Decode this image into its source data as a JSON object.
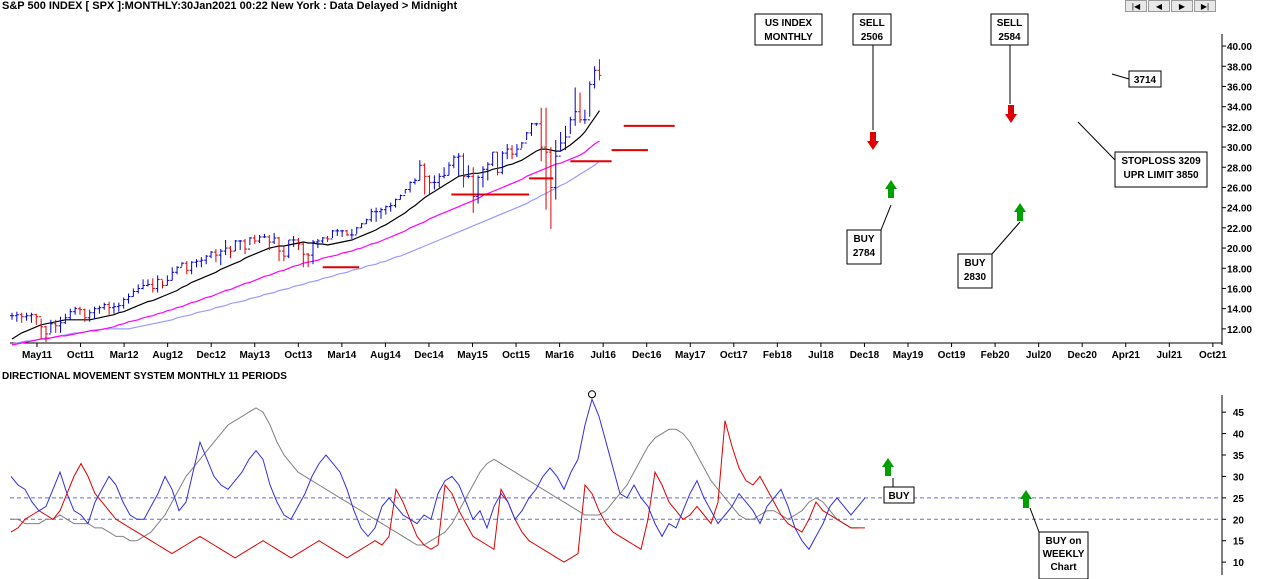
{
  "header": {
    "title": "S&P 500 INDEX [ SPX ]:MONTHLY:30Jan2021 00:22 New York : Data Delayed > Midnight",
    "nav_buttons": [
      "|◀",
      "◀",
      "▶",
      "▶|"
    ]
  },
  "subpanel_title": "DIRECTIONAL MOVEMENT SYSTEM MONTHLY 11 PERIODS",
  "chart_data": [
    {
      "type": "line",
      "name": "price",
      "x_ticks": [
        "May11",
        "Oct11",
        "Mar12",
        "Aug12",
        "Dec12",
        "May13",
        "Oct13",
        "Mar14",
        "Aug14",
        "Dec14",
        "May15",
        "Oct15",
        "Mar16",
        "Jul16",
        "Dec16",
        "May17",
        "Oct17",
        "Feb18",
        "Jul18",
        "Dec18",
        "May19",
        "Oct19",
        "Feb20",
        "Jul20",
        "Dec20",
        "Apr21",
        "Jul21",
        "Oct21"
      ],
      "y_ticks": [
        12.0,
        14.0,
        16.0,
        18.0,
        20.0,
        22.0,
        24.0,
        26.0,
        28.0,
        30.0,
        32.0,
        34.0,
        36.0,
        38.0,
        40.0
      ],
      "ylim": [
        10.6,
        40.6
      ],
      "close": [
        13.3,
        13.4,
        13.2,
        13.3,
        13.4,
        13.2,
        12.2,
        11.5,
        12.5,
        12.3,
        12.6,
        13.1,
        13.7,
        14.0,
        13.9,
        13.1,
        13.6,
        14.0,
        14.1,
        14.4,
        14.1,
        14.2,
        14.3,
        14.9,
        15.2,
        15.7,
        16.0,
        16.3,
        16.4,
        16.0,
        16.9,
        16.3,
        16.8,
        17.6,
        18.1,
        18.5,
        17.8,
        18.6,
        18.7,
        18.8,
        19.2,
        19.6,
        19.3,
        19.7,
        20.0,
        19.7,
        20.7,
        20.7,
        19.9,
        21.0,
        20.7,
        21.1,
        21.1,
        20.6,
        21.0,
        19.7,
        19.2,
        20.8,
        20.8,
        20.4,
        19.4,
        19.3,
        20.6,
        20.7,
        21.0,
        20.9,
        21.7,
        21.7,
        21.7,
        21.3,
        21.3,
        22.0,
        22.4,
        22.8,
        23.6,
        23.6,
        23.8,
        24.1,
        24.2,
        24.8,
        25.2,
        25.8,
        26.5,
        26.7,
        28.2,
        27.1,
        26.5,
        26.5,
        27.1,
        27.2,
        28.2,
        29.0,
        29.1,
        27.1,
        27.1,
        25.1,
        27.0,
        27.8,
        28.3,
        29.5,
        27.5,
        29.4,
        29.8,
        29.3,
        29.8,
        30.4,
        31.4,
        32.3,
        32.3,
        30.0,
        29.5,
        26.0,
        29.1,
        30.4,
        31.0,
        32.7,
        33.5,
        32.7,
        32.7,
        36.2,
        37.6,
        37.1
      ],
      "high": [
        13.6,
        13.7,
        13.6,
        13.6,
        13.6,
        13.5,
        13.0,
        12.3,
        12.9,
        12.9,
        13.2,
        13.5,
        14.0,
        14.2,
        14.2,
        14.0,
        13.9,
        14.2,
        14.3,
        14.6,
        14.7,
        14.6,
        14.6,
        15.1,
        15.5,
        16.0,
        16.4,
        16.9,
        16.9,
        17.0,
        17.3,
        16.8,
        17.3,
        18.1,
        18.2,
        18.6,
        18.7,
        18.7,
        18.9,
        19.1,
        19.3,
        19.7,
        19.9,
        19.9,
        20.8,
        20.2,
        20.8,
        20.8,
        20.9,
        21.1,
        21.3,
        21.3,
        21.4,
        21.3,
        21.5,
        21.1,
        20.2,
        20.8,
        21.2,
        21.0,
        20.5,
        19.5,
        20.8,
        20.9,
        21.1,
        21.2,
        21.8,
        21.9,
        21.8,
        21.8,
        21.9,
        22.1,
        22.5,
        22.9,
        23.9,
        24.0,
        24.0,
        24.2,
        24.5,
        24.9,
        25.3,
        25.8,
        26.6,
        26.9,
        28.7,
        28.4,
        27.2,
        27.2,
        27.4,
        28.0,
        28.5,
        29.2,
        29.4,
        29.4,
        28.2,
        28.0,
        27.2,
        28.1,
        28.5,
        29.5,
        29.5,
        29.6,
        30.3,
        30.2,
        30.3,
        30.5,
        31.5,
        32.4,
        32.4,
        33.9,
        33.9,
        30.0,
        30.7,
        31.5,
        32.1,
        33.0,
        35.9,
        35.4,
        33.7,
        36.5,
        38.0,
        38.7
      ],
      "low": [
        12.9,
        12.7,
        12.6,
        12.8,
        12.6,
        12.4,
        11.0,
        10.7,
        11.6,
        11.6,
        11.6,
        12.5,
        12.9,
        13.4,
        13.4,
        12.7,
        12.7,
        13.0,
        13.5,
        13.9,
        13.4,
        13.5,
        13.7,
        14.0,
        14.5,
        15.2,
        15.5,
        15.9,
        16.2,
        15.6,
        15.6,
        16.0,
        16.3,
        16.8,
        17.4,
        18.2,
        17.4,
        17.4,
        18.1,
        18.1,
        18.4,
        19.0,
        18.6,
        18.3,
        19.3,
        19.0,
        19.7,
        19.8,
        19.4,
        20.3,
        20.4,
        20.5,
        21.0,
        19.8,
        20.4,
        18.7,
        18.7,
        19.0,
        20.1,
        19.8,
        18.1,
        18.1,
        18.4,
        20.0,
        20.5,
        20.6,
        21.0,
        21.2,
        21.1,
        21.2,
        20.9,
        21.4,
        22.0,
        22.4,
        22.6,
        22.6,
        22.9,
        23.3,
        23.6,
        24.0,
        24.8,
        25.4,
        25.5,
        26.3,
        26.7,
        25.3,
        25.3,
        25.8,
        26.0,
        26.9,
        27.2,
        27.9,
        27.1,
        26.0,
        26.9,
        23.5,
        24.4,
        26.0,
        26.7,
        28.1,
        27.2,
        27.3,
        28.8,
        28.8,
        29.0,
        29.9,
        30.7,
        31.1,
        32.1,
        28.6,
        23.8,
        21.9,
        24.8,
        29.6,
        29.7,
        31.3,
        32.1,
        32.4,
        32.3,
        33.0,
        35.8,
        36.6
      ],
      "ma_black": [
        11.0,
        11.3,
        11.6,
        11.8,
        12.0,
        12.2,
        12.4,
        12.5,
        12.6,
        12.7,
        12.8,
        12.9,
        12.9,
        12.9,
        12.9,
        12.9,
        12.9,
        13.0,
        13.1,
        13.2,
        13.3,
        13.4,
        13.6,
        13.7,
        13.9,
        14.1,
        14.3,
        14.5,
        14.7,
        14.8,
        15.0,
        15.2,
        15.4,
        15.6,
        15.8,
        16.1,
        16.3,
        16.6,
        16.8,
        17.0,
        17.2,
        17.4,
        17.6,
        17.9,
        18.1,
        18.3,
        18.5,
        18.7,
        19.0,
        19.2,
        19.4,
        19.6,
        19.8,
        20.0,
        20.1,
        20.2,
        20.2,
        20.3,
        20.4,
        20.5,
        20.6,
        20.5,
        20.5,
        20.4,
        20.4,
        20.3,
        20.4,
        20.5,
        20.6,
        20.7,
        20.8,
        21.0,
        21.2,
        21.4,
        21.6,
        21.8,
        22.1,
        22.3,
        22.6,
        22.9,
        23.2,
        23.5,
        23.9,
        24.2,
        24.6,
        25.0,
        25.3,
        25.6,
        25.9,
        26.2,
        26.5,
        26.8,
        27.1,
        27.2,
        27.3,
        27.4,
        27.4,
        27.5,
        27.6,
        27.8,
        27.9,
        28.0,
        28.2,
        28.3,
        28.5,
        28.7,
        29.0,
        29.3,
        29.6,
        29.8,
        29.8,
        29.7,
        29.6,
        29.6,
        29.9,
        30.2,
        30.6,
        31.0,
        31.5,
        32.2,
        32.9,
        33.6
      ],
      "ma_magenta": [
        10.4,
        10.5,
        10.6,
        10.7,
        10.8,
        10.9,
        11.0,
        11.0,
        11.1,
        11.2,
        11.3,
        11.3,
        11.4,
        11.5,
        11.6,
        11.7,
        11.8,
        11.8,
        11.9,
        12.0,
        12.1,
        12.2,
        12.4,
        12.5,
        12.7,
        12.8,
        12.9,
        13.1,
        13.2,
        13.3,
        13.5,
        13.6,
        13.8,
        13.9,
        14.1,
        14.2,
        14.4,
        14.6,
        14.7,
        14.9,
        15.1,
        15.2,
        15.4,
        15.6,
        15.8,
        15.9,
        16.1,
        16.3,
        16.5,
        16.6,
        16.8,
        17.0,
        17.2,
        17.3,
        17.5,
        17.7,
        17.8,
        18.0,
        18.2,
        18.3,
        18.5,
        18.6,
        18.7,
        18.8,
        19.0,
        19.1,
        19.2,
        19.3,
        19.5,
        19.6,
        19.7,
        19.9,
        20.0,
        20.2,
        20.4,
        20.5,
        20.7,
        20.9,
        21.1,
        21.3,
        21.5,
        21.7,
        22.0,
        22.2,
        22.4,
        22.6,
        22.9,
        23.1,
        23.3,
        23.5,
        23.7,
        23.9,
        24.1,
        24.3,
        24.5,
        24.7,
        24.9,
        25.2,
        25.4,
        25.6,
        25.8,
        26.0,
        26.2,
        26.4,
        26.6,
        26.8,
        27.1,
        27.3,
        27.5,
        27.7,
        27.9,
        28.1,
        28.3,
        28.4,
        28.6,
        28.8,
        29.0,
        29.2,
        29.5,
        29.9,
        30.3,
        30.6
      ],
      "ma_blue": [
        10.5,
        10.6,
        10.7,
        10.8,
        10.8,
        10.9,
        11.0,
        11.1,
        11.1,
        11.2,
        11.3,
        11.4,
        11.5,
        11.6,
        11.6,
        11.7,
        11.8,
        11.9,
        11.9,
        12.0,
        12.0,
        12.0,
        12.0,
        12.0,
        12.0,
        12.1,
        12.2,
        12.3,
        12.4,
        12.5,
        12.6,
        12.7,
        12.8,
        12.9,
        13.1,
        13.2,
        13.3,
        13.4,
        13.6,
        13.7,
        13.8,
        13.9,
        14.1,
        14.2,
        14.3,
        14.5,
        14.6,
        14.7,
        14.8,
        15.0,
        15.1,
        15.2,
        15.4,
        15.5,
        15.6,
        15.8,
        15.9,
        16.0,
        16.2,
        16.3,
        16.4,
        16.6,
        16.7,
        16.8,
        17.0,
        17.1,
        17.2,
        17.4,
        17.5,
        17.6,
        17.8,
        17.9,
        18.0,
        18.2,
        18.3,
        18.4,
        18.6,
        18.7,
        18.9,
        19.1,
        19.2,
        19.4,
        19.6,
        19.8,
        20.0,
        20.2,
        20.4,
        20.6,
        20.8,
        21.0,
        21.2,
        21.4,
        21.6,
        21.8,
        22.0,
        22.2,
        22.4,
        22.6,
        22.8,
        23.0,
        23.2,
        23.4,
        23.6,
        23.8,
        24.0,
        24.2,
        24.4,
        24.7,
        24.9,
        25.2,
        25.4,
        25.7,
        25.9,
        26.2,
        26.4,
        26.7,
        27.0,
        27.3,
        27.6,
        27.9,
        28.2,
        28.6
      ],
      "hlines": [
        {
          "i0": 128,
          "i1": 143,
          "y": 18.1
        },
        {
          "i0": 181,
          "i1": 213,
          "y": 25.3
        },
        {
          "i0": 213,
          "i1": 223,
          "y": 26.9
        },
        {
          "i0": 230,
          "i1": 247,
          "y": 28.6
        },
        {
          "i0": 247,
          "i1": 262,
          "y": 29.7
        },
        {
          "i0": 252,
          "i1": 273,
          "y": 32.1
        }
      ],
      "arrows": [
        {
          "dir": "down",
          "color": "#e00000",
          "x": 873,
          "tip": 150
        },
        {
          "dir": "up",
          "color": "#00a000",
          "x": 891,
          "tip": 180
        },
        {
          "dir": "down",
          "color": "#e00000",
          "x": 1011,
          "tip": 123
        },
        {
          "dir": "up",
          "color": "#00a000",
          "x": 1020,
          "tip": 203
        }
      ],
      "annotations": [
        {
          "lines": [
            "US INDEX",
            "MONTHLY"
          ]
        },
        {
          "lines": [
            "SELL",
            "2506"
          ]
        },
        {
          "lines": [
            "SELL",
            "2584"
          ]
        },
        {
          "lines": [
            "3714"
          ]
        },
        {
          "lines": [
            "STOPLOSS 3209",
            "UPR LIMIT 3850"
          ]
        },
        {
          "lines": [
            "BUY",
            "2784"
          ]
        },
        {
          "lines": [
            "BUY",
            "2830"
          ]
        }
      ]
    },
    {
      "type": "line",
      "name": "dms",
      "y_ticks": [
        10,
        15,
        20,
        25,
        30,
        35,
        40,
        45
      ],
      "ylim": [
        7,
        49
      ],
      "dashed_levels": [
        20,
        25
      ],
      "blue": [
        30,
        28,
        27,
        24,
        22,
        23,
        27,
        31,
        26,
        22,
        21,
        19,
        24,
        27,
        30,
        28,
        24,
        21,
        20,
        20,
        23,
        26,
        30,
        27,
        22,
        24,
        31,
        38,
        34,
        30,
        28,
        27,
        29,
        31,
        34,
        36,
        34,
        28,
        24,
        21,
        20,
        23,
        26,
        30,
        33,
        35,
        33,
        31,
        27,
        22,
        18,
        16,
        18,
        23,
        25,
        23,
        21,
        20,
        19,
        21,
        20,
        26,
        29,
        30,
        28,
        24,
        20,
        22,
        18,
        23,
        26,
        24,
        20,
        22,
        25,
        27,
        30,
        32,
        30,
        27,
        31,
        34,
        42,
        48,
        44,
        38,
        32,
        26,
        25,
        28,
        25,
        23,
        19,
        16,
        19,
        18,
        22,
        26,
        29,
        25,
        22,
        19,
        21,
        23,
        26,
        24,
        22,
        19,
        23,
        25,
        27,
        23,
        18,
        15,
        13,
        16,
        19,
        23,
        25,
        23,
        21,
        23,
        25
      ],
      "red": [
        17,
        18,
        20,
        21,
        22,
        21,
        20,
        22,
        26,
        30,
        33,
        30,
        26,
        24,
        22,
        20,
        19,
        18,
        17,
        16,
        15,
        14,
        13,
        12,
        13,
        14,
        15,
        16,
        15,
        14,
        13,
        12,
        11,
        12,
        13,
        14,
        15,
        14,
        13,
        12,
        11,
        12,
        13,
        14,
        15,
        14,
        13,
        12,
        11,
        12,
        13,
        14,
        15,
        14,
        16,
        27,
        24,
        20,
        16,
        14,
        13,
        14,
        28,
        26,
        22,
        19,
        16,
        15,
        14,
        13,
        27,
        24,
        20,
        17,
        15,
        14,
        13,
        12,
        11,
        10,
        11,
        12,
        28,
        26,
        22,
        19,
        17,
        16,
        15,
        14,
        13,
        20,
        31,
        28,
        24,
        22,
        20,
        21,
        23,
        21,
        19,
        24,
        43,
        37,
        32,
        29,
        28,
        30,
        27,
        24,
        21,
        19,
        18,
        17,
        20,
        24,
        22,
        21,
        20,
        19,
        18,
        18,
        18
      ],
      "gray": [
        20,
        20,
        19,
        19,
        19,
        20,
        20,
        21,
        20,
        19,
        19,
        19,
        18,
        18,
        17,
        16,
        16,
        15,
        15,
        16,
        17,
        19,
        21,
        24,
        27,
        30,
        32,
        34,
        36,
        38,
        40,
        42,
        43,
        44,
        45,
        46,
        45,
        42,
        38,
        35,
        33,
        31,
        30,
        29,
        28,
        27,
        26,
        25,
        24,
        23,
        22,
        21,
        20,
        19,
        18,
        17,
        16,
        15,
        14,
        14,
        15,
        16,
        17,
        19,
        22,
        25,
        28,
        31,
        33,
        34,
        33,
        32,
        31,
        30,
        29,
        28,
        27,
        26,
        25,
        24,
        23,
        22,
        21,
        21,
        21,
        22,
        24,
        26,
        28,
        31,
        34,
        37,
        39,
        40,
        41,
        41,
        40,
        38,
        35,
        32,
        29,
        27,
        25,
        23,
        21,
        20,
        20,
        21,
        22,
        22,
        21,
        20,
        21,
        22,
        24,
        25,
        24,
        22,
        20,
        19,
        18,
        18
      ],
      "annotations": [
        {
          "lines": [
            "BUY"
          ]
        },
        {
          "lines": [
            "BUY on",
            "WEEKLY",
            "Chart"
          ]
        }
      ]
    }
  ]
}
